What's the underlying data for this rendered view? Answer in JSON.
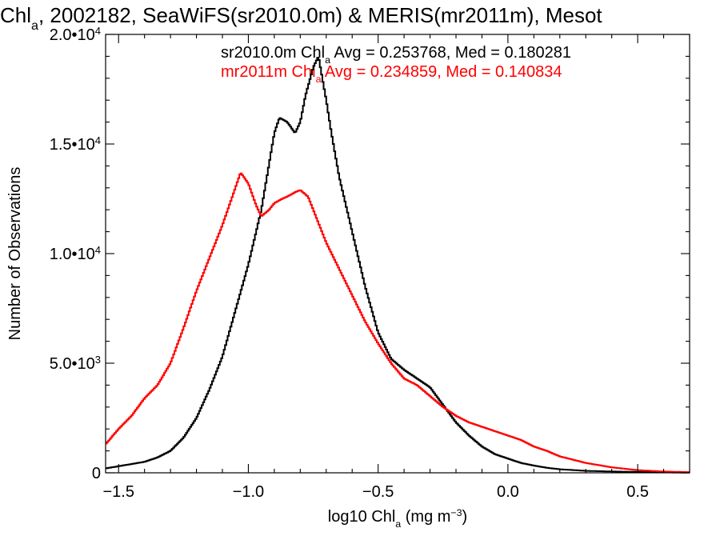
{
  "chart_data": {
    "type": "line",
    "title_parts": [
      "Chl",
      "a",
      ", 2002182, SeaWiFS(sr2010.0m) & MERIS(mr2011m), Mesot"
    ],
    "xlabel_parts": [
      "log10 Chl",
      "a",
      " (mg m",
      "−3",
      ")"
    ],
    "ylabel": "Number of Observations",
    "xlim": [
      -1.55,
      0.7
    ],
    "ylim": [
      0,
      20000
    ],
    "x_ticks": [
      {
        "value": -1.5,
        "label": "−1.5"
      },
      {
        "value": -1.0,
        "label": "−1.0"
      },
      {
        "value": -0.5,
        "label": "−0.5"
      },
      {
        "value": 0.0,
        "label": "0.0"
      },
      {
        "value": 0.5,
        "label": "0.5"
      }
    ],
    "y_ticks": [
      {
        "value": 0,
        "mantissa": "0",
        "exp": ""
      },
      {
        "value": 5000,
        "mantissa": "5.0•10",
        "exp": "3"
      },
      {
        "value": 10000,
        "mantissa": "1.0•10",
        "exp": "4"
      },
      {
        "value": 15000,
        "mantissa": "1.5•10",
        "exp": "4"
      },
      {
        "value": 20000,
        "mantissa": "2.0•10",
        "exp": "4"
      }
    ],
    "annotations": [
      {
        "parts": [
          "sr2010.0m Chl",
          "a",
          " Avg = 0.253768, Med = 0.180281"
        ],
        "color": "#000000"
      },
      {
        "parts": [
          "mr2011m Chl",
          "a",
          " Avg = 0.234859, Med = 0.140834"
        ],
        "color": "#ff0000"
      }
    ],
    "series": [
      {
        "name": "sr2010.0m",
        "color": "#000000",
        "x": [
          -1.55,
          -1.5,
          -1.45,
          -1.4,
          -1.35,
          -1.3,
          -1.25,
          -1.2,
          -1.15,
          -1.1,
          -1.05,
          -1.0,
          -0.95,
          -0.9,
          -0.88,
          -0.85,
          -0.82,
          -0.8,
          -0.78,
          -0.75,
          -0.73,
          -0.7,
          -0.68,
          -0.65,
          -0.6,
          -0.55,
          -0.5,
          -0.45,
          -0.4,
          -0.35,
          -0.3,
          -0.25,
          -0.2,
          -0.15,
          -0.1,
          -0.05,
          0.0,
          0.05,
          0.1,
          0.15,
          0.2,
          0.3,
          0.4,
          0.5,
          0.6,
          0.7
        ],
        "y": [
          200,
          300,
          400,
          500,
          700,
          1000,
          1600,
          2500,
          3800,
          5300,
          7400,
          9500,
          12000,
          15500,
          16200,
          16000,
          15500,
          16000,
          17200,
          18500,
          19000,
          17000,
          15500,
          13500,
          11000,
          8500,
          6400,
          5200,
          4700,
          4300,
          3900,
          3100,
          2300,
          1700,
          1200,
          850,
          650,
          450,
          330,
          230,
          160,
          90,
          60,
          40,
          20,
          10
        ]
      },
      {
        "name": "mr2011m",
        "color": "#ff0000",
        "x": [
          -1.55,
          -1.5,
          -1.45,
          -1.4,
          -1.35,
          -1.3,
          -1.25,
          -1.2,
          -1.15,
          -1.1,
          -1.05,
          -1.03,
          -1.0,
          -0.97,
          -0.95,
          -0.92,
          -0.9,
          -0.87,
          -0.85,
          -0.82,
          -0.8,
          -0.77,
          -0.75,
          -0.72,
          -0.7,
          -0.65,
          -0.6,
          -0.55,
          -0.5,
          -0.45,
          -0.4,
          -0.35,
          -0.3,
          -0.25,
          -0.2,
          -0.15,
          -0.1,
          -0.05,
          0.0,
          0.05,
          0.1,
          0.15,
          0.2,
          0.3,
          0.4,
          0.5,
          0.6,
          0.7
        ],
        "y": [
          1300,
          2000,
          2600,
          3400,
          4000,
          5000,
          6600,
          8300,
          9800,
          11300,
          13000,
          13700,
          13200,
          12200,
          11700,
          12000,
          12300,
          12500,
          12600,
          12800,
          12900,
          12600,
          12000,
          11100,
          10500,
          9300,
          8100,
          6900,
          5900,
          5000,
          4300,
          4000,
          3500,
          3000,
          2600,
          2300,
          2100,
          1900,
          1700,
          1500,
          1200,
          1000,
          750,
          450,
          250,
          120,
          60,
          30
        ]
      }
    ]
  }
}
